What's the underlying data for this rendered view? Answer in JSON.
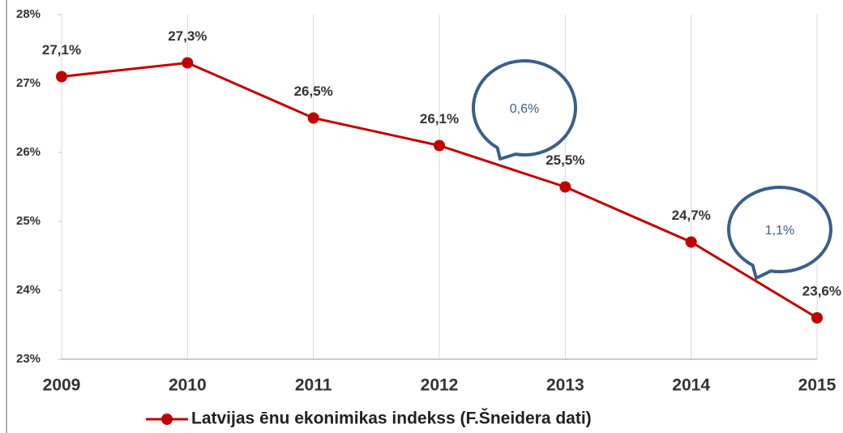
{
  "chart_data": {
    "type": "line",
    "categories": [
      "2009",
      "2010",
      "2011",
      "2012",
      "2013",
      "2014",
      "2015"
    ],
    "series": [
      {
        "name": "Latvijas ēnu ekonimikas indekss (F.Šneidera dati)",
        "color": "#c00000",
        "values": [
          27.1,
          27.3,
          26.5,
          26.1,
          25.5,
          24.7,
          23.6
        ],
        "value_labels": [
          "27,1%",
          "27,3%",
          "26,5%",
          "26,1%",
          "25,5%",
          "24,7%",
          "23,6%"
        ]
      }
    ],
    "ylim": [
      23,
      28
    ],
    "yticks": [
      {
        "value": 23,
        "label": "23%"
      },
      {
        "value": 24,
        "label": "24%"
      },
      {
        "value": 25,
        "label": "25%"
      },
      {
        "value": 26,
        "label": "26%"
      },
      {
        "value": 27,
        "label": "27%"
      },
      {
        "value": 28,
        "label": "28%"
      }
    ],
    "grid": true,
    "legend": "bottom",
    "annotations": [
      {
        "text": "0,6%"
      },
      {
        "text": "1,1%"
      }
    ]
  }
}
